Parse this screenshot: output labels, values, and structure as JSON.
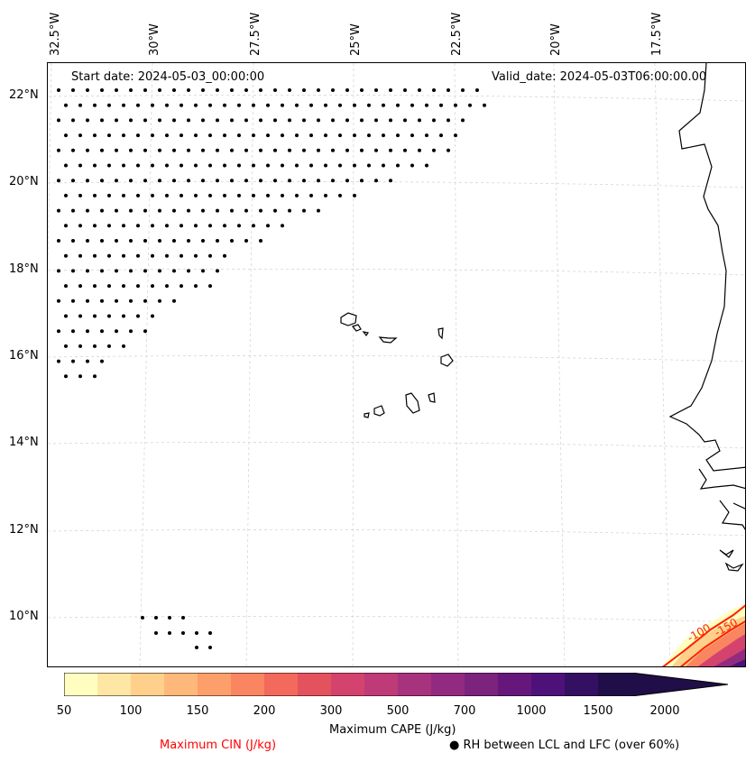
{
  "map": {
    "start_date": "Start date: 2024-05-03_00:00:00",
    "valid_date": "Valid_date: 2024-05-03T06:00:00.00",
    "lon_labels": [
      "32.5°W",
      "30°W",
      "27.5°W",
      "25°W",
      "22.5°W",
      "20°W",
      "17.5°W"
    ],
    "lat_labels": [
      "22°N",
      "20°N",
      "18°N",
      "16°N",
      "14°N",
      "12°N",
      "10°N"
    ],
    "contour_labels": [
      "-100",
      "-150"
    ],
    "colors": {
      "coastline": "#000000",
      "gridline": "#d0d0d0",
      "cin_contour": "#ff2000",
      "dots": "#000000"
    }
  },
  "colorbar": {
    "title": "Maximum CAPE (J/kg)",
    "tick_labels": [
      "50",
      "100",
      "150",
      "200",
      "300",
      "500",
      "700",
      "1000",
      "1500",
      "2000"
    ],
    "colors": [
      "#fffec0",
      "#fee7a4",
      "#fed08b",
      "#feb87a",
      "#fc9f6b",
      "#fa8561",
      "#f3695c",
      "#e4525e",
      "#d3436e",
      "#be3b78",
      "#a7327e",
      "#922b7f",
      "#7c237e",
      "#66177b",
      "#4e117a",
      "#331062",
      "#1f0e47"
    ]
  },
  "legend": {
    "cin_label": "Maximum CIN (J/kg)",
    "cin_color": "#ff0000",
    "rh_label": "RH between LCL and LFC (over 60%)",
    "rh_marker": "●"
  }
}
